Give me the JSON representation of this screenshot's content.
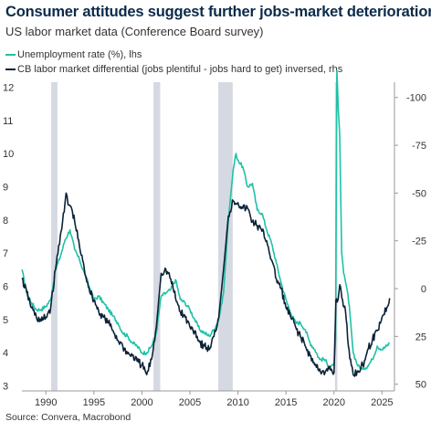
{
  "header": {
    "title": "Consumer attitudes suggest further jobs-market deterioration",
    "subtitle": "US labor market data (Conference Board survey)"
  },
  "footer": {
    "source": "Source: Convera, Macrobond"
  },
  "chart_data": {
    "type": "line",
    "title": "Consumer attitudes suggest further jobs-market deterioration",
    "subtitle": "US labor market data (Conference Board survey)",
    "x_ticks": [
      "1990",
      "1995",
      "2000",
      "2005",
      "2010",
      "2015",
      "2020",
      "2025"
    ],
    "xlim": [
      1987.5,
      2026.3
    ],
    "y_left": {
      "lim": [
        2.85,
        12.15
      ],
      "ticks": [
        "3",
        "4",
        "5",
        "6",
        "7",
        "8",
        "9",
        "10",
        "11",
        "12"
      ]
    },
    "y_right": {
      "lim": [
        53.5,
        -108
      ],
      "inverted": true,
      "ticks": [
        "-100",
        "-75",
        "-50",
        "-25",
        "0",
        "25",
        "50"
      ]
    },
    "grid": false,
    "legend": "top-left",
    "recessions": [
      [
        1990.55,
        1991.2
      ],
      [
        2001.2,
        2001.9
      ],
      [
        2007.95,
        2009.45
      ],
      [
        2020.1,
        2020.35
      ]
    ],
    "recession_color": "#d5d9e1",
    "series": [
      {
        "name": "Unemployment rate (%), lhs",
        "axis": "left",
        "color": "#1fc1a7",
        "x": [
          1987.5,
          1988.0,
          1988.5,
          1989.0,
          1989.5,
          1990.0,
          1990.5,
          1991.0,
          1991.5,
          1992.0,
          1992.5,
          1993.0,
          1993.5,
          1994.0,
          1994.5,
          1995.0,
          1995.5,
          1996.0,
          1996.5,
          1997.0,
          1997.5,
          1998.0,
          1998.5,
          1999.0,
          1999.5,
          2000.0,
          2000.5,
          2001.0,
          2001.5,
          2002.0,
          2002.5,
          2003.0,
          2003.5,
          2004.0,
          2004.5,
          2005.0,
          2005.5,
          2006.0,
          2006.5,
          2007.0,
          2007.5,
          2008.0,
          2008.5,
          2009.0,
          2009.5,
          2009.8,
          2010.0,
          2010.5,
          2011.0,
          2011.5,
          2012.0,
          2012.5,
          2013.0,
          2013.5,
          2014.0,
          2014.5,
          2015.0,
          2015.5,
          2016.0,
          2016.5,
          2017.0,
          2017.5,
          2018.0,
          2018.5,
          2019.0,
          2019.5,
          2020.0,
          2020.17,
          2020.3,
          2020.45,
          2020.6,
          2020.8,
          2021.0,
          2021.3,
          2021.6,
          2022.0,
          2022.5,
          2023.0,
          2023.5,
          2024.0,
          2024.5,
          2025.0,
          2025.5,
          2025.8
        ],
        "values": [
          6.5,
          5.8,
          5.5,
          5.3,
          5.3,
          5.4,
          5.6,
          6.5,
          6.9,
          7.4,
          7.7,
          7.1,
          6.8,
          6.4,
          6.0,
          5.6,
          5.7,
          5.5,
          5.3,
          5.1,
          4.9,
          4.6,
          4.5,
          4.3,
          4.2,
          4.0,
          4.0,
          4.2,
          4.6,
          5.7,
          5.8,
          5.9,
          6.2,
          5.6,
          5.5,
          5.3,
          5.0,
          4.7,
          4.6,
          4.5,
          4.7,
          5.0,
          5.8,
          8.0,
          9.5,
          10.0,
          9.8,
          9.6,
          9.0,
          9.1,
          8.3,
          8.2,
          7.7,
          7.3,
          6.7,
          6.1,
          5.6,
          5.2,
          4.9,
          4.9,
          4.7,
          4.3,
          4.1,
          3.8,
          3.8,
          3.6,
          3.6,
          4.4,
          12.5,
          11.3,
          10.5,
          7.0,
          6.4,
          6.0,
          5.4,
          4.0,
          3.6,
          3.5,
          3.6,
          3.8,
          4.2,
          4.1,
          4.2,
          4.3
        ]
      },
      {
        "name": "CB labor market differential (jobs plentiful - jobs hard to get) inversed, rhs",
        "axis": "right",
        "color": "#0b2238",
        "x": [
          1987.5,
          1988.0,
          1988.5,
          1989.0,
          1989.5,
          1990.0,
          1990.5,
          1991.0,
          1991.5,
          1991.9,
          1992.1,
          1992.3,
          1992.6,
          1993.0,
          1993.5,
          1994.0,
          1994.5,
          1995.0,
          1995.5,
          1996.0,
          1996.5,
          1997.0,
          1997.5,
          1998.0,
          1998.5,
          1999.0,
          1999.5,
          2000.0,
          2000.5,
          2001.0,
          2001.5,
          2002.0,
          2002.5,
          2003.0,
          2003.5,
          2004.0,
          2004.5,
          2005.0,
          2005.5,
          2006.0,
          2006.5,
          2007.0,
          2007.5,
          2008.0,
          2008.5,
          2009.0,
          2009.5,
          2010.0,
          2010.5,
          2011.0,
          2011.5,
          2012.0,
          2012.5,
          2013.0,
          2013.5,
          2014.0,
          2014.5,
          2015.0,
          2015.5,
          2016.0,
          2016.5,
          2017.0,
          2017.5,
          2018.0,
          2018.5,
          2019.0,
          2019.5,
          2020.0,
          2020.2,
          2020.35,
          2020.6,
          2020.9,
          2021.2,
          2021.5,
          2021.8,
          2022.0,
          2022.5,
          2023.0,
          2023.5,
          2024.0,
          2024.5,
          2025.0,
          2025.5,
          2025.8
        ],
        "values": [
          -5,
          2,
          10,
          15,
          17,
          15,
          10,
          -10,
          -28,
          -40,
          -50,
          -44,
          -43,
          -35,
          -22,
          -10,
          0,
          6,
          12,
          15,
          18,
          22,
          27,
          30,
          34,
          35,
          38,
          40,
          45,
          37,
          20,
          -8,
          -10,
          -5,
          5,
          12,
          15,
          20,
          22,
          28,
          30,
          32,
          25,
          15,
          -10,
          -38,
          -46,
          -45,
          -42,
          -42,
          -35,
          -33,
          -30,
          -25,
          -15,
          -5,
          0,
          10,
          15,
          20,
          25,
          30,
          35,
          40,
          42,
          45,
          42,
          44,
          6,
          7,
          -2,
          6,
          12,
          30,
          40,
          45,
          43,
          40,
          32,
          27,
          22,
          15,
          10,
          5
        ]
      }
    ]
  }
}
